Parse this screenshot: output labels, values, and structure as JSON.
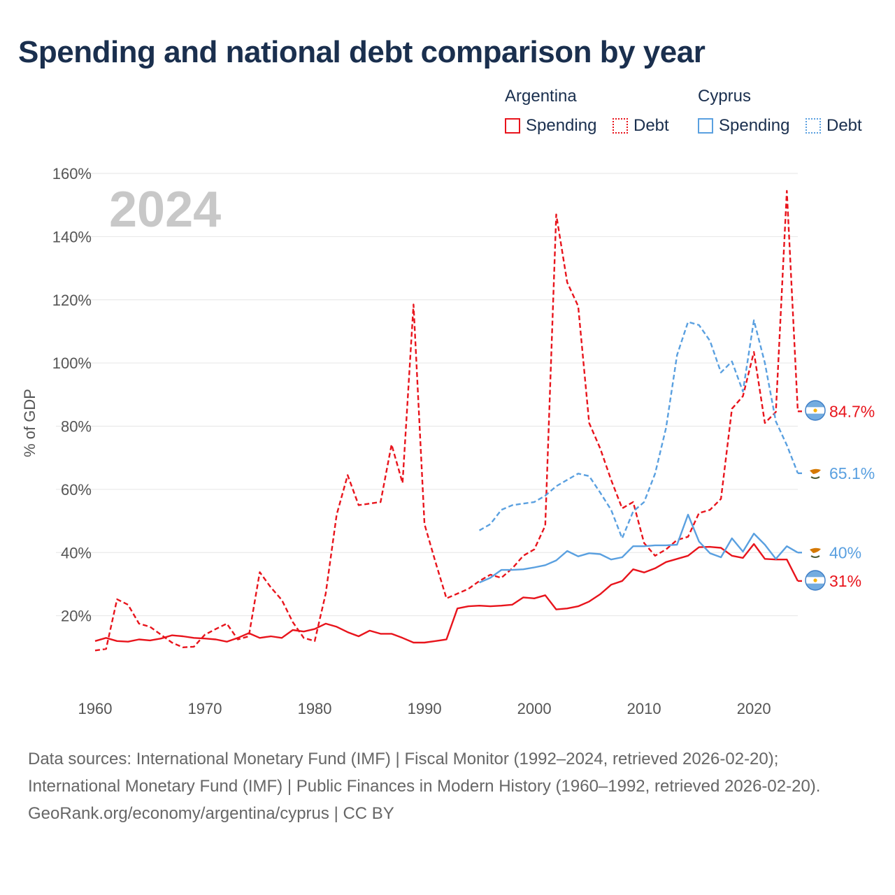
{
  "title": "Spending and national debt comparison by year",
  "legend": {
    "groups": [
      {
        "country": "Argentina",
        "items": [
          {
            "label": "Spending",
            "style": "solid",
            "color": "#e8141c"
          },
          {
            "label": "Debt",
            "style": "dotted",
            "color": "#e8141c"
          }
        ]
      },
      {
        "country": "Cyprus",
        "items": [
          {
            "label": "Spending",
            "style": "solid",
            "color": "#5aa0e0"
          },
          {
            "label": "Debt",
            "style": "dotted",
            "color": "#5aa0e0"
          }
        ]
      }
    ]
  },
  "footer": {
    "sources": "Data sources: International Monetary Fund (IMF) | Fiscal Monitor (1992–2024, retrieved 2026-02-20); International Monetary Fund (IMF) | Public Finances in Modern History (1960–1992, retrieved 2026-02-20).",
    "credit": "GeoRank.org/economy/argentina/cyprus | CC BY"
  },
  "chart_data": {
    "type": "line",
    "year_label": "2024",
    "ylabel": "% of GDP",
    "xlabel": "",
    "xlim": [
      1960,
      2024
    ],
    "ylim": [
      0,
      160
    ],
    "y_ticks": [
      20,
      40,
      60,
      80,
      100,
      120,
      140,
      160
    ],
    "y_tick_labels": [
      "20%",
      "40%",
      "60%",
      "80%",
      "100%",
      "120%",
      "140%",
      "160%"
    ],
    "x_ticks": [
      1960,
      1970,
      1980,
      1990,
      2000,
      2010,
      2020
    ],
    "x_tick_labels": [
      "1960",
      "1970",
      "1980",
      "1990",
      "2000",
      "2010",
      "2020"
    ],
    "colors": {
      "argentina": "#e8141c",
      "cyprus": "#5aa0e0"
    },
    "series": [
      {
        "name": "Argentina Debt",
        "country": "argentina",
        "dash": "dashed",
        "end_label": "84.7%",
        "points": [
          [
            1960,
            9
          ],
          [
            1961,
            9.5
          ],
          [
            1962,
            25.2
          ],
          [
            1963,
            23.5
          ],
          [
            1964,
            17.5
          ],
          [
            1965,
            16.5
          ],
          [
            1966,
            14
          ],
          [
            1967,
            11.5
          ],
          [
            1968,
            10
          ],
          [
            1969,
            10.2
          ],
          [
            1970,
            14
          ],
          [
            1971,
            15.8
          ],
          [
            1972,
            17.5
          ],
          [
            1973,
            12.5
          ],
          [
            1974,
            13.5
          ],
          [
            1975,
            33.8
          ],
          [
            1976,
            29
          ],
          [
            1977,
            25
          ],
          [
            1978,
            18
          ],
          [
            1979,
            13
          ],
          [
            1980,
            12
          ],
          [
            1981,
            27
          ],
          [
            1982,
            52
          ],
          [
            1983,
            64.5
          ],
          [
            1984,
            55
          ],
          [
            1985,
            55.5
          ],
          [
            1986,
            56
          ],
          [
            1987,
            74.2
          ],
          [
            1988,
            62
          ],
          [
            1989,
            118.5
          ],
          [
            1990,
            49
          ],
          [
            1991,
            37
          ],
          [
            1992,
            25.5
          ],
          [
            1993,
            27
          ],
          [
            1994,
            28.5
          ],
          [
            1995,
            31
          ],
          [
            1996,
            33
          ],
          [
            1997,
            32
          ],
          [
            1998,
            35
          ],
          [
            1999,
            39
          ],
          [
            2000,
            41
          ],
          [
            2001,
            48.5
          ],
          [
            2002,
            147
          ],
          [
            2003,
            125.5
          ],
          [
            2004,
            118
          ],
          [
            2005,
            81
          ],
          [
            2006,
            73
          ],
          [
            2007,
            63
          ],
          [
            2008,
            54
          ],
          [
            2009,
            56
          ],
          [
            2010,
            43
          ],
          [
            2011,
            39
          ],
          [
            2012,
            41
          ],
          [
            2013,
            44
          ],
          [
            2014,
            45
          ],
          [
            2015,
            52.5
          ],
          [
            2016,
            53.5
          ],
          [
            2017,
            57
          ],
          [
            2018,
            85.5
          ],
          [
            2019,
            89.5
          ],
          [
            2020,
            103.5
          ],
          [
            2021,
            81
          ],
          [
            2022,
            84.5
          ],
          [
            2023,
            154.5
          ],
          [
            2024,
            84.7
          ]
        ]
      },
      {
        "name": "Argentina Spending",
        "country": "argentina",
        "dash": "solid",
        "end_label": "31%",
        "points": [
          [
            1960,
            12
          ],
          [
            1961,
            13
          ],
          [
            1962,
            12
          ],
          [
            1963,
            11.8
          ],
          [
            1964,
            12.5
          ],
          [
            1965,
            12.2
          ],
          [
            1966,
            12.8
          ],
          [
            1967,
            13.8
          ],
          [
            1968,
            13.5
          ],
          [
            1969,
            13
          ],
          [
            1970,
            12.8
          ],
          [
            1971,
            12.5
          ],
          [
            1972,
            11.8
          ],
          [
            1973,
            13
          ],
          [
            1974,
            14.5
          ],
          [
            1975,
            13
          ],
          [
            1976,
            13.5
          ],
          [
            1977,
            13
          ],
          [
            1978,
            15.5
          ],
          [
            1979,
            15
          ],
          [
            1980,
            15.8
          ],
          [
            1981,
            17.5
          ],
          [
            1982,
            16.5
          ],
          [
            1983,
            14.8
          ],
          [
            1984,
            13.5
          ],
          [
            1985,
            15.3
          ],
          [
            1986,
            14.3
          ],
          [
            1987,
            14.3
          ],
          [
            1988,
            13
          ],
          [
            1989,
            11.5
          ],
          [
            1990,
            11.5
          ],
          [
            1991,
            12
          ],
          [
            1992,
            12.5
          ],
          [
            1993,
            22.3
          ],
          [
            1994,
            23
          ],
          [
            1995,
            23.2
          ],
          [
            1996,
            23
          ],
          [
            1997,
            23.2
          ],
          [
            1998,
            23.5
          ],
          [
            1999,
            25.8
          ],
          [
            2000,
            25.5
          ],
          [
            2001,
            26.5
          ],
          [
            2002,
            22
          ],
          [
            2003,
            22.3
          ],
          [
            2004,
            23
          ],
          [
            2005,
            24.5
          ],
          [
            2006,
            26.8
          ],
          [
            2007,
            29.8
          ],
          [
            2008,
            31
          ],
          [
            2009,
            34.7
          ],
          [
            2010,
            33.7
          ],
          [
            2011,
            35
          ],
          [
            2012,
            37
          ],
          [
            2013,
            38
          ],
          [
            2014,
            39
          ],
          [
            2015,
            41.7
          ],
          [
            2016,
            41.8
          ],
          [
            2017,
            41.5
          ],
          [
            2018,
            39
          ],
          [
            2019,
            38.3
          ],
          [
            2020,
            42.7
          ],
          [
            2021,
            38
          ],
          [
            2022,
            37.8
          ],
          [
            2023,
            37.8
          ],
          [
            2024,
            31
          ]
        ]
      },
      {
        "name": "Cyprus Debt",
        "country": "cyprus",
        "dash": "dashed",
        "end_label": "65.1%",
        "points": [
          [
            1995,
            47
          ],
          [
            1996,
            49
          ],
          [
            1997,
            53.5
          ],
          [
            1998,
            55
          ],
          [
            1999,
            55.5
          ],
          [
            2000,
            56
          ],
          [
            2001,
            58
          ],
          [
            2002,
            61
          ],
          [
            2003,
            63
          ],
          [
            2004,
            65
          ],
          [
            2005,
            64.2
          ],
          [
            2006,
            59
          ],
          [
            2007,
            53.5
          ],
          [
            2008,
            44.5
          ],
          [
            2009,
            53
          ],
          [
            2010,
            56
          ],
          [
            2011,
            65
          ],
          [
            2012,
            79.5
          ],
          [
            2013,
            102.5
          ],
          [
            2014,
            113
          ],
          [
            2015,
            112
          ],
          [
            2016,
            107
          ],
          [
            2017,
            97
          ],
          [
            2018,
            100.5
          ],
          [
            2019,
            91
          ],
          [
            2020,
            113.5
          ],
          [
            2021,
            100
          ],
          [
            2022,
            81.5
          ],
          [
            2023,
            74
          ],
          [
            2024,
            65.1
          ]
        ]
      },
      {
        "name": "Cyprus Spending",
        "country": "cyprus",
        "dash": "solid",
        "end_label": "40%",
        "points": [
          [
            1995,
            30.5
          ],
          [
            1996,
            32
          ],
          [
            1997,
            34.5
          ],
          [
            1998,
            34.5
          ],
          [
            1999,
            34.7
          ],
          [
            2000,
            35.3
          ],
          [
            2001,
            36
          ],
          [
            2002,
            37.5
          ],
          [
            2003,
            40.5
          ],
          [
            2004,
            38.8
          ],
          [
            2005,
            39.8
          ],
          [
            2006,
            39.5
          ],
          [
            2007,
            37.8
          ],
          [
            2008,
            38.5
          ],
          [
            2009,
            42
          ],
          [
            2010,
            42
          ],
          [
            2011,
            42.3
          ],
          [
            2012,
            42.3
          ],
          [
            2013,
            42.5
          ],
          [
            2014,
            52
          ],
          [
            2015,
            43.5
          ],
          [
            2016,
            39.8
          ],
          [
            2017,
            38.5
          ],
          [
            2018,
            44.5
          ],
          [
            2019,
            40.3
          ],
          [
            2020,
            46
          ],
          [
            2021,
            42.5
          ],
          [
            2022,
            38
          ],
          [
            2023,
            42
          ],
          [
            2024,
            40
          ]
        ]
      }
    ]
  }
}
